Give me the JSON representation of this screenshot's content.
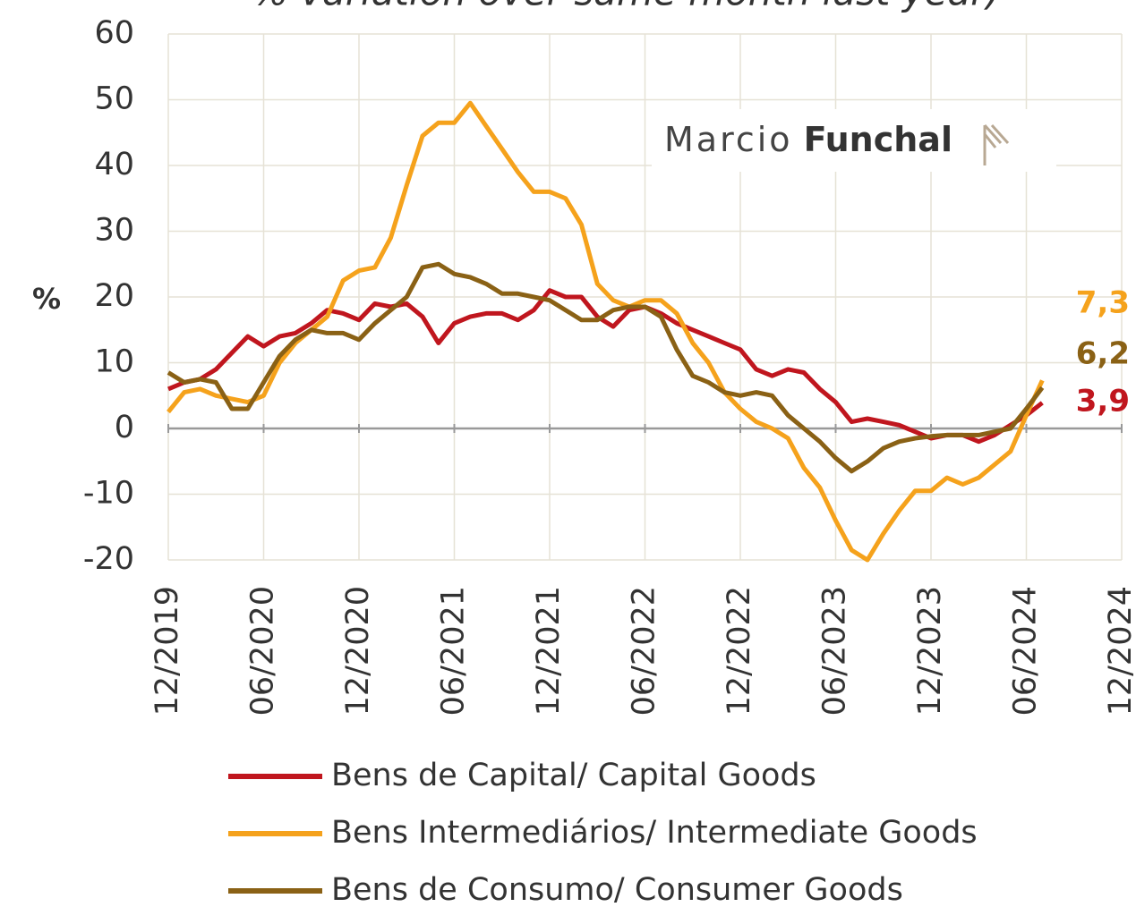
{
  "chart_data": {
    "type": "line",
    "title": "% variation over same month last year)",
    "y_label": "%",
    "watermark": [
      "Marcio",
      "Funchal"
    ],
    "categories": [
      "12/2019",
      null,
      null,
      null,
      null,
      null,
      "06/2020",
      null,
      null,
      null,
      null,
      null,
      "12/2020",
      null,
      null,
      null,
      null,
      null,
      "06/2021",
      null,
      null,
      null,
      null,
      null,
      "12/2021",
      null,
      null,
      null,
      null,
      null,
      "06/2022",
      null,
      null,
      null,
      null,
      null,
      "12/2022",
      null,
      null,
      null,
      null,
      null,
      "06/2023",
      null,
      null,
      null,
      null,
      null,
      "12/2023",
      null,
      null,
      null,
      null,
      null,
      "06/2024",
      null,
      null,
      null,
      null,
      null,
      "12/2024"
    ],
    "ylim": [
      -20,
      60
    ],
    "yticks": [
      -20,
      -10,
      0,
      10,
      20,
      30,
      40,
      50,
      60
    ],
    "grid": true,
    "series": [
      {
        "name": "Bens de Capital/ Capital Goods",
        "color": "#c0161e",
        "values": [
          6,
          7,
          7.5,
          9,
          11.5,
          14,
          12.5,
          14,
          14.5,
          16,
          18,
          17.5,
          16.5,
          19,
          18.5,
          19,
          17,
          13,
          16,
          17,
          17.5,
          17.5,
          16.5,
          18,
          21,
          20,
          20,
          17,
          15.5,
          18,
          18.5,
          17.5,
          16,
          15,
          14,
          13,
          12,
          9,
          8,
          9,
          8.5,
          6,
          4,
          1,
          1.5,
          1,
          0.5,
          -0.5,
          -1.5,
          -1,
          -1,
          -2,
          -1,
          0.5,
          2,
          3.9,
          null,
          null,
          null,
          null,
          null
        ],
        "value_labels": [
          null,
          null,
          null,
          null,
          null,
          null,
          null,
          null,
          null,
          null,
          null,
          null,
          null,
          null,
          null,
          null,
          null,
          null,
          null,
          null,
          null,
          null,
          null,
          null,
          null,
          null,
          null,
          null,
          null,
          null,
          null,
          null,
          null,
          null,
          null,
          null,
          null,
          null,
          null,
          null,
          null,
          null,
          null,
          null,
          null,
          null,
          null,
          null,
          null,
          null,
          null,
          null,
          null,
          null,
          null,
          "3,9",
          null,
          null,
          null,
          null,
          null
        ]
      },
      {
        "name": "Bens Intermediários/ Intermediate Goods",
        "color": "#f5a21c",
        "values": [
          2.5,
          5.5,
          6,
          5,
          4.5,
          4,
          5,
          10,
          13,
          15,
          17,
          22.5,
          24,
          24.5,
          29,
          37,
          44.5,
          46.5,
          46.5,
          49.5,
          46,
          42.5,
          39,
          36,
          36,
          35,
          31,
          22,
          19.5,
          18.5,
          19.5,
          19.5,
          17.5,
          13,
          10,
          5.5,
          3,
          1,
          0,
          -1.5,
          -6,
          -9,
          -14,
          -18.5,
          -20,
          -16,
          -12.5,
          -9.5,
          -9.5,
          -7.5,
          -8.5,
          -7.5,
          -5.5,
          -3.5,
          2,
          7.3,
          null,
          null,
          null,
          null,
          null
        ],
        "value_labels": [
          null,
          null,
          null,
          null,
          null,
          null,
          null,
          null,
          null,
          null,
          null,
          null,
          null,
          null,
          null,
          null,
          null,
          null,
          null,
          null,
          null,
          null,
          null,
          null,
          null,
          null,
          null,
          null,
          null,
          null,
          null,
          null,
          null,
          null,
          null,
          null,
          null,
          null,
          null,
          null,
          null,
          null,
          null,
          null,
          null,
          null,
          null,
          null,
          null,
          null,
          null,
          null,
          null,
          null,
          null,
          "7,3",
          null,
          null,
          null,
          null,
          null
        ]
      },
      {
        "name": "Bens de Consumo/ Consumer Goods",
        "color": "#8a6115",
        "values": [
          8.5,
          7,
          7.5,
          7,
          3,
          3,
          7,
          11,
          13.5,
          15,
          14.5,
          14.5,
          13.5,
          16,
          18,
          20,
          24.5,
          25,
          23.5,
          23,
          22,
          20.5,
          20.5,
          20,
          19.5,
          18,
          16.5,
          16.5,
          18,
          18.5,
          18.5,
          17,
          12,
          8,
          7,
          5.5,
          5,
          5.5,
          5,
          2,
          0,
          -2,
          -4.5,
          -6.5,
          -5,
          -3,
          -2,
          -1.5,
          -1.2,
          -1,
          -1,
          -1,
          -0.5,
          0,
          3,
          6.2,
          null,
          null,
          null,
          null,
          null
        ],
        "value_labels": [
          null,
          null,
          null,
          null,
          null,
          null,
          null,
          null,
          null,
          null,
          null,
          null,
          null,
          null,
          null,
          null,
          null,
          null,
          null,
          null,
          null,
          null,
          null,
          null,
          null,
          null,
          null,
          null,
          null,
          null,
          null,
          null,
          null,
          null,
          null,
          null,
          null,
          null,
          null,
          null,
          null,
          null,
          null,
          null,
          null,
          null,
          null,
          null,
          null,
          null,
          null,
          null,
          null,
          null,
          null,
          "6,2",
          null,
          null,
          null,
          null,
          null
        ]
      }
    ]
  }
}
